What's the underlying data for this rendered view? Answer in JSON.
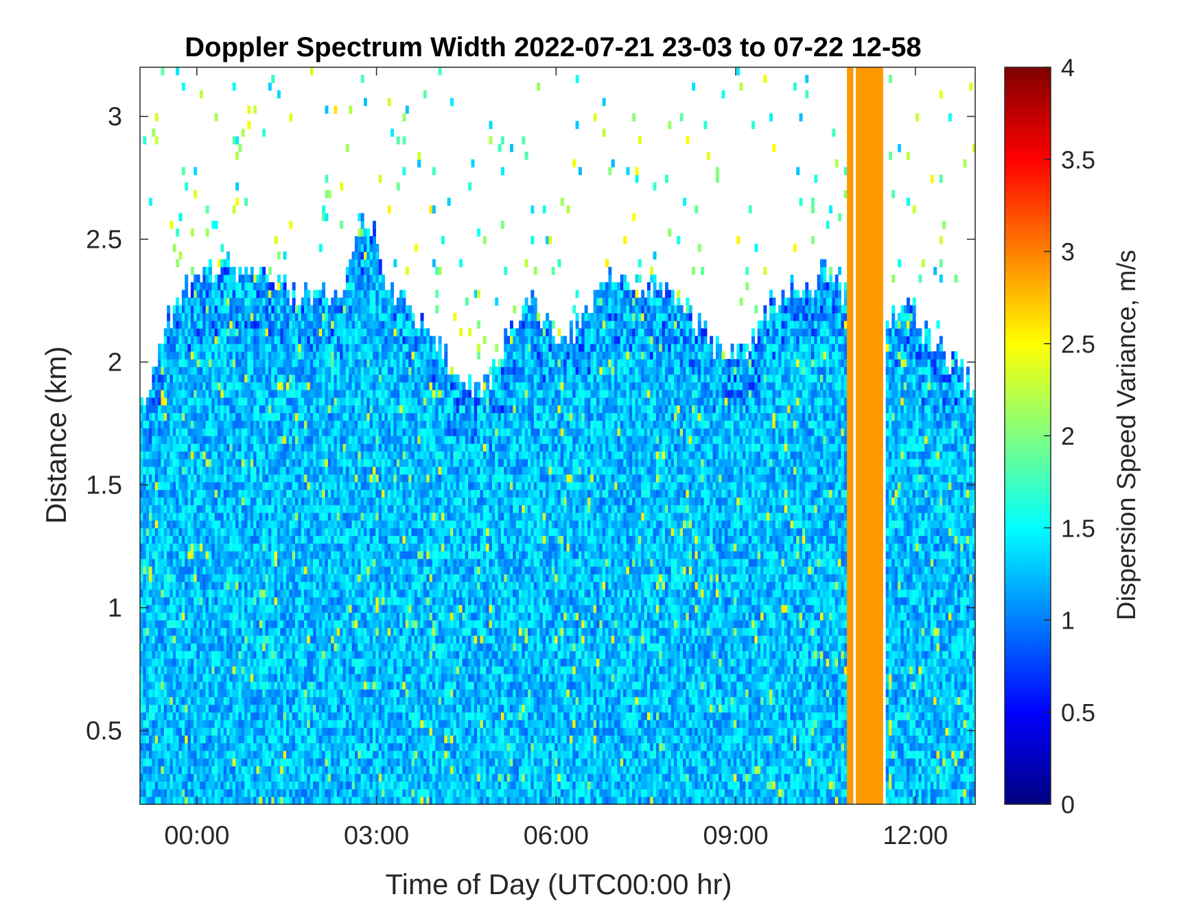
{
  "chart_data": {
    "type": "heatmap",
    "title": "Doppler Spectrum Width 2022-07-21 23-03 to 07-22 12-58",
    "xlabel": "Time of Day (UTC00:00 hr)",
    "ylabel": "Distance (km)",
    "x_start_hr": -0.95,
    "x_end_hr": 13.0,
    "ylim": [
      0.2,
      3.2
    ],
    "x_ticks": [
      {
        "value": 0,
        "label": "00:00"
      },
      {
        "value": 3,
        "label": "03:00"
      },
      {
        "value": 6,
        "label": "06:00"
      },
      {
        "value": 9,
        "label": "09:00"
      },
      {
        "value": 12,
        "label": "12:00"
      }
    ],
    "y_ticks": [
      {
        "value": 0.5,
        "label": "0.5"
      },
      {
        "value": 1.0,
        "label": "1"
      },
      {
        "value": 1.5,
        "label": "1.5"
      },
      {
        "value": 2.0,
        "label": "2"
      },
      {
        "value": 2.5,
        "label": "2.5"
      },
      {
        "value": 3.0,
        "label": "3"
      }
    ],
    "colorbar": {
      "label": "Dispersion Speed Variance, m/s",
      "colormap": "jet",
      "range": [
        0,
        4
      ],
      "ticks": [
        {
          "value": 0,
          "label": "0"
        },
        {
          "value": 0.5,
          "label": "0.5"
        },
        {
          "value": 1.0,
          "label": "1"
        },
        {
          "value": 1.5,
          "label": "1.5"
        },
        {
          "value": 2.0,
          "label": "2"
        },
        {
          "value": 2.5,
          "label": "2.5"
        },
        {
          "value": 3.0,
          "label": "3"
        },
        {
          "value": 3.5,
          "label": "3.5"
        },
        {
          "value": 4.0,
          "label": "4"
        }
      ]
    },
    "signal_top_km": [
      [
        -0.95,
        1.8
      ],
      [
        -0.6,
        2.1
      ],
      [
        -0.3,
        2.25
      ],
      [
        0.0,
        2.35
      ],
      [
        0.5,
        2.4
      ],
      [
        1.0,
        2.35
      ],
      [
        1.5,
        2.3
      ],
      [
        2.0,
        2.28
      ],
      [
        2.4,
        2.25
      ],
      [
        2.6,
        2.45
      ],
      [
        2.8,
        2.62
      ],
      [
        3.0,
        2.5
      ],
      [
        3.2,
        2.3
      ],
      [
        3.5,
        2.25
      ],
      [
        3.8,
        2.15
      ],
      [
        4.1,
        2.05
      ],
      [
        4.4,
        1.92
      ],
      [
        4.7,
        1.9
      ],
      [
        5.0,
        1.98
      ],
      [
        5.3,
        2.15
      ],
      [
        5.5,
        2.28
      ],
      [
        5.7,
        2.2
      ],
      [
        6.0,
        2.1
      ],
      [
        6.3,
        2.12
      ],
      [
        6.6,
        2.22
      ],
      [
        6.9,
        2.35
      ],
      [
        7.2,
        2.28
      ],
      [
        7.5,
        2.3
      ],
      [
        7.8,
        2.32
      ],
      [
        8.1,
        2.25
      ],
      [
        8.4,
        2.15
      ],
      [
        8.7,
        2.05
      ],
      [
        9.0,
        2.0
      ],
      [
        9.3,
        2.1
      ],
      [
        9.6,
        2.25
      ],
      [
        9.9,
        2.3
      ],
      [
        10.2,
        2.32
      ],
      [
        10.5,
        2.38
      ],
      [
        10.8,
        2.3
      ],
      [
        11.0,
        2.25
      ],
      [
        11.5,
        2.1
      ],
      [
        11.8,
        2.3
      ],
      [
        12.1,
        2.12
      ],
      [
        12.4,
        2.05
      ],
      [
        12.7,
        1.98
      ],
      [
        13.0,
        1.9
      ]
    ],
    "saturated_band": {
      "x_start_hr": 10.85,
      "x_end_hr": 11.5,
      "value": 2.9
    },
    "gap_bands": [
      {
        "x_start_hr": 10.97,
        "x_end_hr": 11.03
      },
      {
        "x_start_hr": 11.48,
        "x_end_hr": 11.52
      }
    ],
    "background_value_range": [
      0.9,
      1.6
    ]
  }
}
